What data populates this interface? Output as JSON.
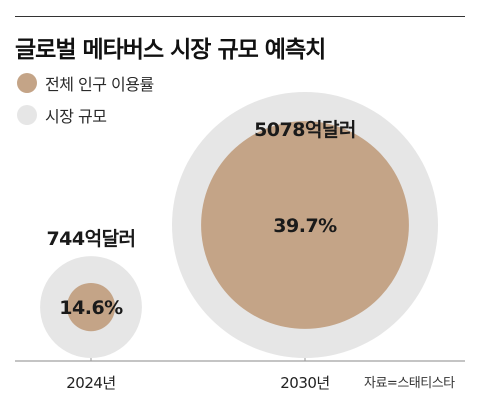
{
  "chart_data": {
    "type": "bubble",
    "title": "글로벌 메타버스 시장 규모 예측치",
    "legend": [
      {
        "name": "전체 인구 이용률",
        "color": "#c4a487"
      },
      {
        "name": "시장 규모",
        "color": "#e6e6e6"
      }
    ],
    "categories": [
      "2024년",
      "2030년"
    ],
    "series": [
      {
        "name": "시장 규모",
        "values": [
          744,
          5078
        ],
        "labels": [
          "744억달러",
          "5078억달러"
        ]
      },
      {
        "name": "전체 인구 이용률",
        "values": [
          14.6,
          39.7
        ],
        "labels": [
          "14.6%",
          "39.7%"
        ]
      }
    ],
    "source": "자료=스태티스타"
  }
}
